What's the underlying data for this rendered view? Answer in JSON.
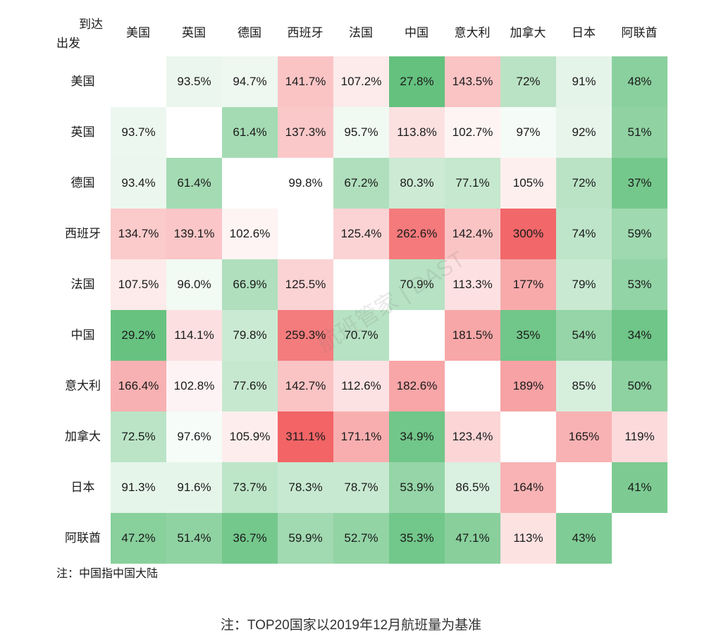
{
  "chart_data": {
    "type": "heatmap",
    "corner_labels": {
      "to": "到达",
      "from": "出发"
    },
    "columns": [
      "美国",
      "英国",
      "德国",
      "西班牙",
      "法国",
      "中国",
      "意大利",
      "加拿大",
      "日本",
      "阿联酋"
    ],
    "rows": [
      "美国",
      "英国",
      "德国",
      "西班牙",
      "法国",
      "中国",
      "意大利",
      "加拿大",
      "日本",
      "阿联酋"
    ],
    "values": [
      [
        "",
        "93.5%",
        "94.7%",
        "141.7%",
        "107.2%",
        "27.8%",
        "143.5%",
        "72%",
        "91%",
        "48%"
      ],
      [
        "93.7%",
        "",
        "61.4%",
        "137.3%",
        "95.7%",
        "113.8%",
        "102.7%",
        "97%",
        "92%",
        "51%"
      ],
      [
        "93.4%",
        "61.4%",
        "",
        "99.8%",
        "67.2%",
        "80.3%",
        "77.1%",
        "105%",
        "72%",
        "37%"
      ],
      [
        "134.7%",
        "139.1%",
        "102.6%",
        "",
        "125.4%",
        "262.6%",
        "142.4%",
        "300%",
        "74%",
        "59%"
      ],
      [
        "107.5%",
        "96.0%",
        "66.9%",
        "125.5%",
        "",
        "70.9%",
        "113.3%",
        "177%",
        "79%",
        "53%"
      ],
      [
        "29.2%",
        "114.1%",
        "79.8%",
        "259.3%",
        "70.7%",
        "",
        "181.5%",
        "35%",
        "54%",
        "34%"
      ],
      [
        "166.4%",
        "102.8%",
        "77.6%",
        "142.7%",
        "112.6%",
        "182.6%",
        "",
        "189%",
        "85%",
        "50%"
      ],
      [
        "72.5%",
        "97.6%",
        "105.9%",
        "311.1%",
        "171.1%",
        "34.9%",
        "123.4%",
        "",
        "165%",
        "119%"
      ],
      [
        "91.3%",
        "91.6%",
        "73.7%",
        "78.3%",
        "78.7%",
        "53.9%",
        "86.5%",
        "164%",
        "",
        "41%"
      ],
      [
        "47.2%",
        "51.4%",
        "36.7%",
        "59.9%",
        "52.7%",
        "35.3%",
        "47.1%",
        "113%",
        "43%",
        ""
      ]
    ],
    "color_scale": {
      "low": "#5fbf7a",
      "mid": "#ffffff",
      "high": "#f26466"
    }
  },
  "note": "注：中国指中国大陆",
  "footnote": "注：TOP20国家以2019年12月航班量为基准",
  "watermark": "航班管家 | DAST"
}
